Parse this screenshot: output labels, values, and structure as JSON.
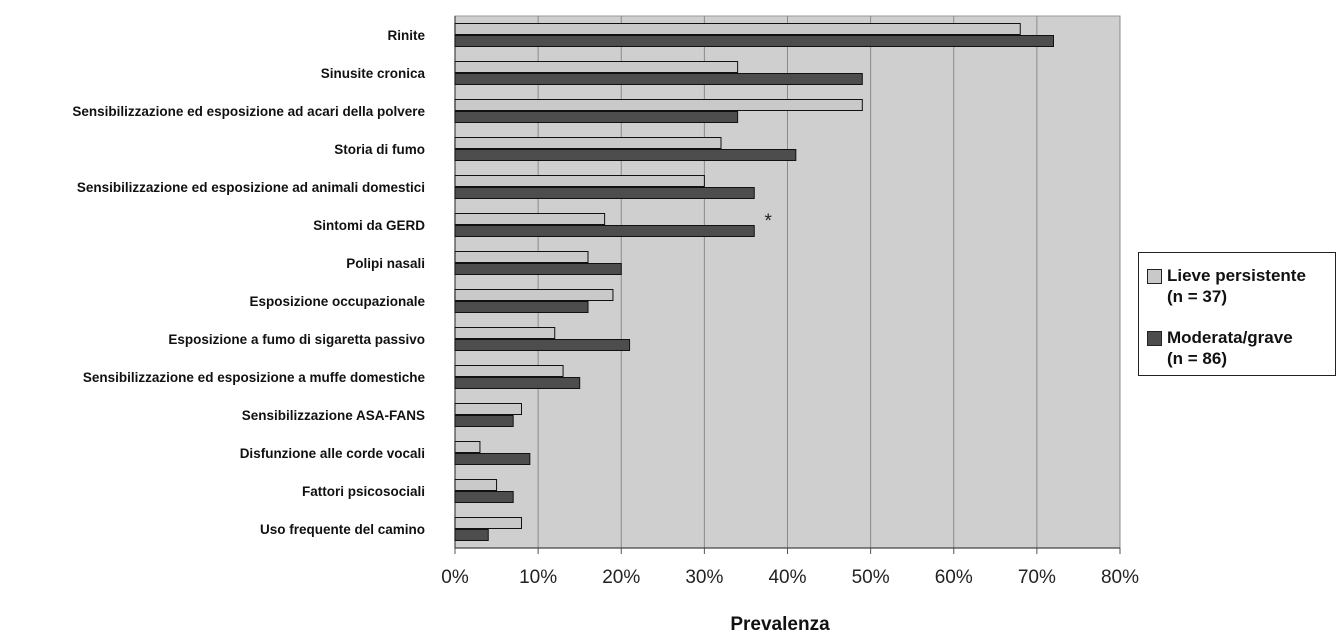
{
  "chart_data": {
    "type": "bar",
    "orientation": "horizontal",
    "categories": [
      "Rinite",
      "Sinusite cronica",
      "Sensibilizzazione ed esposizione ad acari della polvere",
      "Storia di fumo",
      "Sensibilizzazione ed esposizione ad animali domestici",
      "Sintomi da GERD",
      "Polipi nasali",
      "Esposizione occupazionale",
      "Esposizione a fumo di sigaretta passivo",
      "Sensibilizzazione ed esposizione a muffe domestiche",
      "Sensibilizzazione ASA-FANS",
      "Disfunzione alle corde vocali",
      "Fattori psicosociali",
      "Uso frequente del camino"
    ],
    "series": [
      {
        "name_line1": "Lieve persistente",
        "name_line2": "(n = 37)",
        "color": "#c9c9c9",
        "values": [
          68,
          34,
          49,
          32,
          30,
          18,
          16,
          19,
          12,
          13,
          8,
          3,
          5,
          8
        ]
      },
      {
        "name_line1": "Moderata/grave",
        "name_line2": "(n = 86)",
        "color": "#4d4d4d",
        "values": [
          72,
          49,
          34,
          41,
          36,
          36,
          20,
          16,
          21,
          15,
          7,
          9,
          7,
          4
        ]
      }
    ],
    "annotations": [
      {
        "category": "Sintomi da GERD",
        "text": "*"
      }
    ],
    "xlabel": "Prevalenza",
    "xlim": [
      0,
      80
    ],
    "xticks": [
      "0%",
      "10%",
      "20%",
      "30%",
      "40%",
      "50%",
      "60%",
      "70%",
      "80%"
    ],
    "grid": true,
    "legend_position": "right"
  }
}
